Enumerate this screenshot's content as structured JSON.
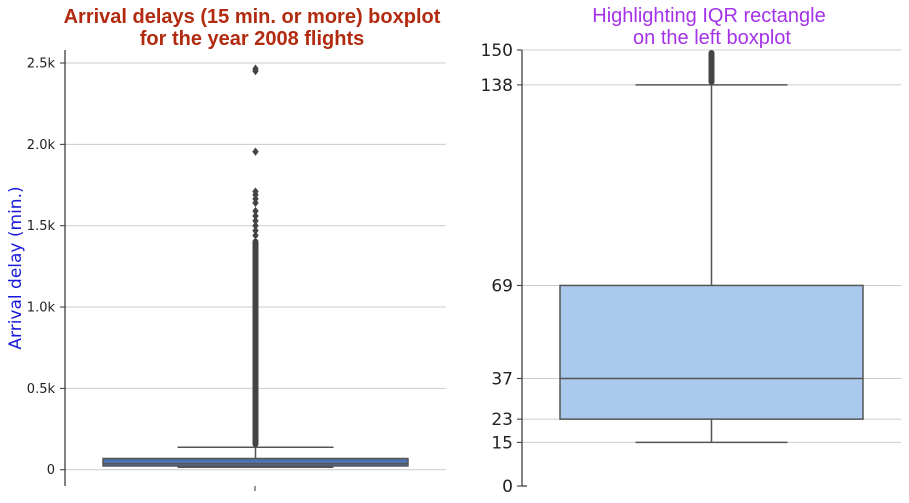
{
  "colors": {
    "left_title": "#b22a0f",
    "right_title": "#a432e8",
    "ylabel": "#1a1adb",
    "left_box": "#4c72b0",
    "right_box": "#abc9ed",
    "lines": "#555555",
    "grid": "#cccccc"
  },
  "chart_data": [
    {
      "type": "boxplot",
      "title": "Arrival delays (15 min. or more) boxplot\nfor the year 2008 flights",
      "title_lines": [
        "Arrival delays (15 min. or more) boxplot",
        "for the year 2008 flights"
      ],
      "ylabel": "Arrival delay (min.)",
      "xlabel": "",
      "ylim": [
        -100,
        2580
      ],
      "yticks": [
        0,
        500,
        1000,
        1500,
        2000,
        2500
      ],
      "ytick_labels": [
        "0",
        "0.5k",
        "1.0k",
        "1.5k",
        "2.0k",
        "2.5k"
      ],
      "grid": "horizontal",
      "box": {
        "whisker_low": 15,
        "q1": 23,
        "median": 37,
        "q3": 69,
        "whisker_high": 138
      },
      "outliers_dense_range": [
        140,
        1420
      ],
      "outliers": [
        1440,
        1470,
        1500,
        1530,
        1560,
        1590,
        1640,
        1665,
        1690,
        1710,
        1955,
        2450,
        2465
      ]
    },
    {
      "type": "boxplot",
      "title": "Highlighting IQR rectangle\non the left boxplot",
      "title_lines": [
        "Highlighting IQR rectangle",
        "on the left boxplot"
      ],
      "ylabel": "",
      "xlabel": "",
      "ylim": [
        0,
        150
      ],
      "yticks": [
        0,
        15,
        23,
        37,
        69,
        138,
        150
      ],
      "ytick_labels": [
        "0",
        "15",
        "23",
        "37",
        "69",
        "138",
        "150"
      ],
      "grid": "horizontal",
      "box": {
        "whisker_low": 15,
        "q1": 23,
        "median": 37,
        "q3": 69,
        "whisker_high": 138
      },
      "outliers_dense_range": [
        138,
        150
      ]
    }
  ]
}
